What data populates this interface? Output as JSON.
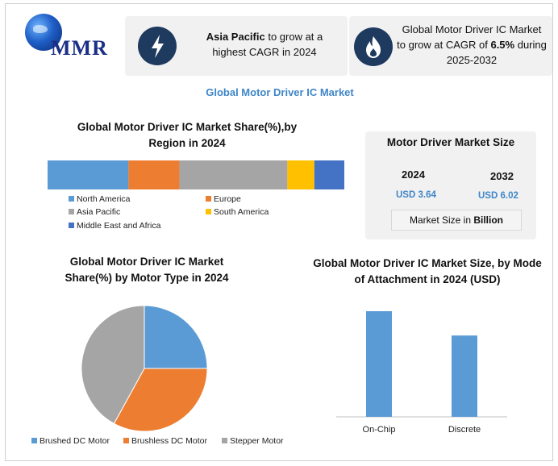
{
  "logo": {
    "text": "MMR"
  },
  "highlight_cards": [
    {
      "icon": "lightning-icon",
      "bold": "Asia Pacific",
      "text": " to grow at a highest CAGR in 2024"
    },
    {
      "icon": "flame-icon",
      "line1": "Global Motor Driver IC Market",
      "line2_pre": "to grow at CAGR of ",
      "line2_bold": "6.5%",
      "line2_post": " during",
      "line3": "2025-2032"
    }
  ],
  "main_title": "Global Motor Driver IC Market",
  "market_size": {
    "title": "Motor Driver Market Size",
    "years": [
      {
        "year": "2024",
        "value": "USD 3.64"
      },
      {
        "year": "2032",
        "value": "USD 6.02"
      }
    ],
    "unit_pre": "Market Size in ",
    "unit_bold": "Billion"
  },
  "colors": {
    "blue": "#5b9bd5",
    "orange": "#ed7d31",
    "gray": "#a5a5a5",
    "yellow": "#ffc000",
    "darkblue": "#4472c4",
    "accent": "#3f86c8",
    "icon_bg": "#1e3a5f"
  },
  "chart_data": [
    {
      "type": "bar",
      "orientation": "horizontal-stacked",
      "title": "Global Motor Driver IC Market Share(%),by Region in 2024",
      "categories": [
        "North America",
        "Europe",
        "Asia Pacific",
        "South America",
        "Middle East and Africa"
      ],
      "values": [
        27,
        17,
        36,
        9,
        10
      ],
      "legend_position": "bottom"
    },
    {
      "type": "pie",
      "title": "Global Motor Driver IC Market Share(%) by Motor Type in 2024",
      "labels": [
        "Brushed DC Motor",
        "Brushless DC Motor",
        "Stepper Motor"
      ],
      "values": [
        25,
        33,
        42
      ],
      "legend_position": "bottom"
    },
    {
      "type": "bar",
      "title": "Global Motor Driver IC Market Size, by Mode of Attachment in 2024  (USD)",
      "categories": [
        "On-Chip",
        "Discrete"
      ],
      "values": [
        100,
        77
      ],
      "grid": false
    }
  ]
}
